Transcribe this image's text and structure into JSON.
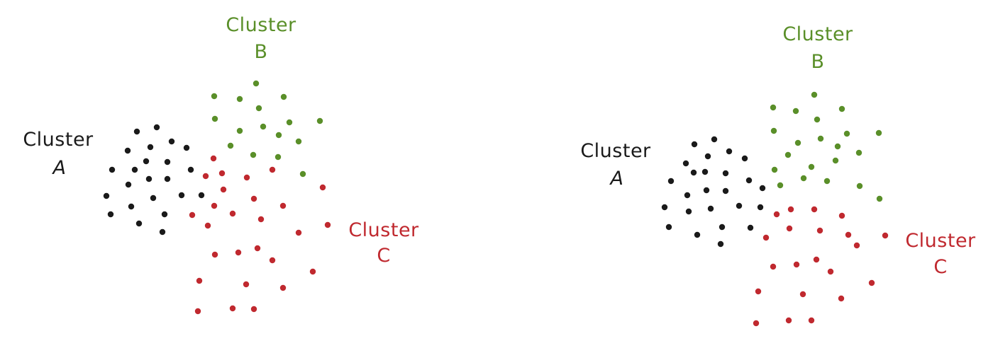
{
  "colors": {
    "cluster_a": "#1a1a1a",
    "cluster_b": "#5a8f29",
    "cluster_c": "#c0292f",
    "background": "#ffffff"
  },
  "panels": [
    {
      "labels": {
        "cluster_a": [
          "Cluster",
          "A"
        ],
        "cluster_b": [
          "Cluster",
          "B"
        ],
        "cluster_c": [
          "Cluster",
          "C"
        ]
      }
    },
    {
      "labels": {
        "cluster_a": [
          "Cluster",
          "A"
        ],
        "cluster_b": [
          "Cluster",
          "B"
        ],
        "cluster_c": [
          "Cluster",
          "C"
        ]
      }
    }
  ]
}
